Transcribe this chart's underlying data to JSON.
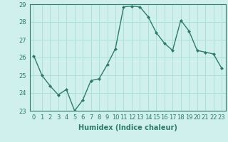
{
  "x": [
    0,
    1,
    2,
    3,
    4,
    5,
    6,
    7,
    8,
    9,
    10,
    11,
    12,
    13,
    14,
    15,
    16,
    17,
    18,
    19,
    20,
    21,
    22,
    23
  ],
  "y": [
    26.1,
    25.0,
    24.4,
    23.9,
    24.2,
    23.0,
    23.6,
    24.7,
    24.8,
    25.6,
    26.5,
    28.85,
    28.9,
    28.85,
    28.3,
    27.4,
    26.8,
    26.4,
    28.1,
    27.5,
    26.4,
    26.3,
    26.2,
    25.4
  ],
  "line_color": "#2e7b6e",
  "marker": "D",
  "marker_size": 2,
  "bg_color": "#cff0ec",
  "grid_color": "#a8ddd8",
  "xlabel": "Humidex (Indice chaleur)",
  "ylim": [
    23,
    29
  ],
  "xlim": [
    -0.5,
    23.5
  ],
  "yticks": [
    23,
    24,
    25,
    26,
    27,
    28,
    29
  ],
  "xtick_labels": [
    "0",
    "1",
    "2",
    "3",
    "4",
    "5",
    "6",
    "7",
    "8",
    "9",
    "10",
    "11",
    "12",
    "13",
    "14",
    "15",
    "16",
    "17",
    "18",
    "19",
    "20",
    "21",
    "22",
    "23"
  ],
  "xlabel_fontsize": 7,
  "tick_fontsize": 6,
  "line_width": 1.0
}
